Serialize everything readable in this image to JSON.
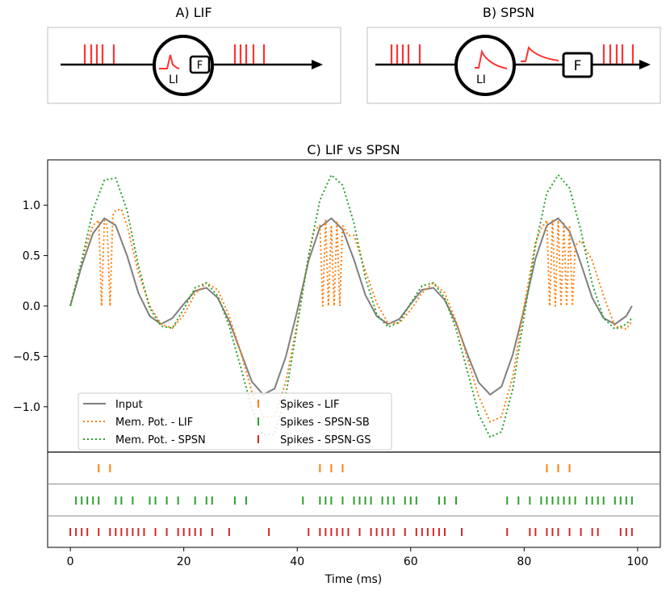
{
  "panels": {
    "a_title": "A) LIF",
    "b_title": "B) SPSN",
    "a_neuron_label": "LI",
    "a_box_label": "F",
    "b_neuron_label": "LI",
    "b_box_label": "F"
  },
  "colors": {
    "input": "#7f7f7f",
    "lif": "#ff7f0e",
    "spsn": "#2ca02c",
    "gs": "#d62728",
    "spike_red": "#ff3333"
  },
  "chart_data": {
    "type": "line",
    "title": "C) LIF vs SPSN",
    "xlabel": "Time (ms)",
    "ylabel": "",
    "xlim": [
      -4,
      104
    ],
    "ylim": [
      -1.45,
      1.45
    ],
    "xticks": [
      0,
      20,
      40,
      60,
      80,
      100
    ],
    "yticks": [
      -1.0,
      -0.5,
      0.0,
      0.5,
      1.0
    ],
    "grid": false,
    "legend_position": "lower-left",
    "legend": [
      {
        "label": "Input",
        "style": "solid",
        "series": "input"
      },
      {
        "label": "Mem. Pot. - LIF",
        "style": "dotted",
        "series": "lif"
      },
      {
        "label": "Mem. Pot. - SPSN",
        "style": "dotted",
        "series": "spsn"
      },
      {
        "label": "Spikes - LIF",
        "style": "tick",
        "series": "spikes_lif"
      },
      {
        "label": "Spikes - SPSN-SB",
        "style": "tick",
        "series": "spikes_sb"
      },
      {
        "label": "Spikes - SPSN-GS",
        "style": "tick",
        "series": "spikes_gs"
      }
    ],
    "series": [
      {
        "name": "Input",
        "key": "input",
        "x": [
          0,
          2,
          4,
          6,
          8,
          10,
          12,
          14,
          16,
          18,
          20,
          22,
          24,
          26,
          28,
          30,
          32,
          34,
          36,
          38,
          40,
          42,
          44,
          46,
          48,
          50,
          52,
          54,
          56,
          58,
          60,
          62,
          64,
          66,
          68,
          70,
          72,
          74,
          76,
          78,
          80,
          82,
          84,
          86,
          88,
          90,
          92,
          94,
          96,
          98,
          99
        ],
        "y": [
          0.0,
          0.4,
          0.72,
          0.87,
          0.8,
          0.5,
          0.13,
          -0.1,
          -0.18,
          -0.12,
          0.02,
          0.15,
          0.18,
          0.08,
          -0.15,
          -0.45,
          -0.75,
          -0.88,
          -0.82,
          -0.5,
          -0.05,
          0.45,
          0.78,
          0.87,
          0.76,
          0.46,
          0.11,
          -0.1,
          -0.18,
          -0.13,
          0.02,
          0.16,
          0.18,
          0.06,
          -0.17,
          -0.48,
          -0.76,
          -0.88,
          -0.8,
          -0.48,
          -0.03,
          0.47,
          0.8,
          0.87,
          0.74,
          0.42,
          0.08,
          -0.12,
          -0.18,
          -0.1,
          0.0
        ]
      },
      {
        "name": "Mem. Pot. - LIF",
        "key": "lif",
        "x": [
          0,
          2,
          4,
          5,
          5.5,
          6,
          6.5,
          7,
          7.5,
          8,
          9,
          10,
          12,
          14,
          16,
          18,
          20,
          22,
          24,
          26,
          28,
          30,
          32,
          34,
          36,
          38,
          40,
          42,
          43,
          44,
          44.5,
          45,
          45.5,
          46,
          46.5,
          47,
          47.5,
          48,
          49,
          50,
          52,
          54,
          56,
          58,
          60,
          62,
          64,
          66,
          68,
          70,
          72,
          74,
          76,
          78,
          80,
          82,
          83,
          84,
          84.5,
          85,
          85.5,
          86,
          86.5,
          87,
          87.5,
          88,
          88.5,
          89,
          90,
          92,
          94,
          96,
          98,
          99
        ],
        "y": [
          0.0,
          0.45,
          0.8,
          0.85,
          0.0,
          0.85,
          0.8,
          0.0,
          0.9,
          0.95,
          0.96,
          0.8,
          0.33,
          0.0,
          -0.18,
          -0.22,
          -0.09,
          0.12,
          0.23,
          0.16,
          -0.1,
          -0.45,
          -0.85,
          -1.1,
          -1.1,
          -0.75,
          -0.17,
          0.5,
          0.75,
          0.8,
          0.0,
          0.85,
          0.0,
          0.8,
          0.0,
          0.83,
          0.0,
          0.8,
          0.7,
          0.7,
          0.35,
          0.03,
          -0.17,
          -0.17,
          -0.04,
          0.13,
          0.23,
          0.13,
          -0.15,
          -0.52,
          -0.9,
          -1.15,
          -1.1,
          -0.7,
          0.0,
          0.63,
          0.77,
          0.85,
          0.0,
          0.85,
          0.0,
          0.85,
          0.0,
          0.82,
          0.0,
          0.8,
          0.0,
          0.6,
          0.65,
          0.45,
          0.1,
          -0.2,
          -0.23,
          -0.15
        ]
      },
      {
        "name": "Mem. Pot. - SPSN",
        "key": "spsn",
        "x": [
          0,
          2,
          4,
          6,
          8,
          10,
          12,
          14,
          16,
          18,
          20,
          22,
          24,
          26,
          28,
          30,
          32,
          34,
          36,
          38,
          40,
          42,
          44,
          46,
          48,
          50,
          52,
          54,
          56,
          58,
          60,
          62,
          64,
          66,
          68,
          70,
          72,
          74,
          76,
          78,
          80,
          82,
          84,
          86,
          88,
          90,
          92,
          94,
          96,
          98,
          99
        ],
        "y": [
          0.0,
          0.45,
          0.95,
          1.25,
          1.27,
          0.95,
          0.4,
          -0.02,
          -0.2,
          -0.22,
          -0.03,
          0.18,
          0.23,
          0.1,
          -0.2,
          -0.6,
          -1.02,
          -1.28,
          -1.27,
          -0.88,
          -0.2,
          0.5,
          1.05,
          1.3,
          1.2,
          0.82,
          0.28,
          -0.08,
          -0.21,
          -0.16,
          0.03,
          0.2,
          0.23,
          0.08,
          -0.23,
          -0.65,
          -1.08,
          -1.3,
          -1.25,
          -0.82,
          -0.1,
          0.6,
          1.12,
          1.3,
          1.17,
          0.75,
          0.22,
          -0.12,
          -0.23,
          -0.18,
          -0.12
        ]
      }
    ],
    "spikes": [
      {
        "name": "Spikes - LIF",
        "key": "lif",
        "times": [
          5,
          7,
          44,
          46,
          48,
          84,
          86,
          88
        ]
      },
      {
        "name": "Spikes - SPSN-SB",
        "key": "spsn",
        "times": [
          1,
          2,
          3,
          4,
          5,
          8,
          9,
          11,
          14,
          15,
          17,
          19,
          22,
          24,
          25,
          29,
          31,
          41,
          44,
          45,
          46,
          48,
          50,
          51,
          52,
          53,
          55,
          56,
          57,
          59,
          60,
          61,
          65,
          66,
          68,
          77,
          79,
          81,
          83,
          84,
          85,
          86,
          87,
          88,
          89,
          91,
          92,
          93,
          94,
          96,
          97,
          98,
          99
        ]
      },
      {
        "name": "Spikes - SPSN-GS",
        "key": "gs",
        "times": [
          0,
          1,
          2,
          3,
          5,
          7,
          8,
          9,
          10,
          11,
          12,
          13,
          15,
          17,
          19,
          20,
          21,
          22,
          23,
          25,
          28,
          35,
          42,
          44,
          45,
          46,
          47,
          48,
          49,
          51,
          53,
          54,
          55,
          56,
          57,
          59,
          61,
          62,
          63,
          64,
          65,
          66,
          69,
          77,
          81,
          82,
          84,
          85,
          86,
          88,
          90,
          92,
          93,
          97,
          98,
          99
        ]
      }
    ]
  }
}
